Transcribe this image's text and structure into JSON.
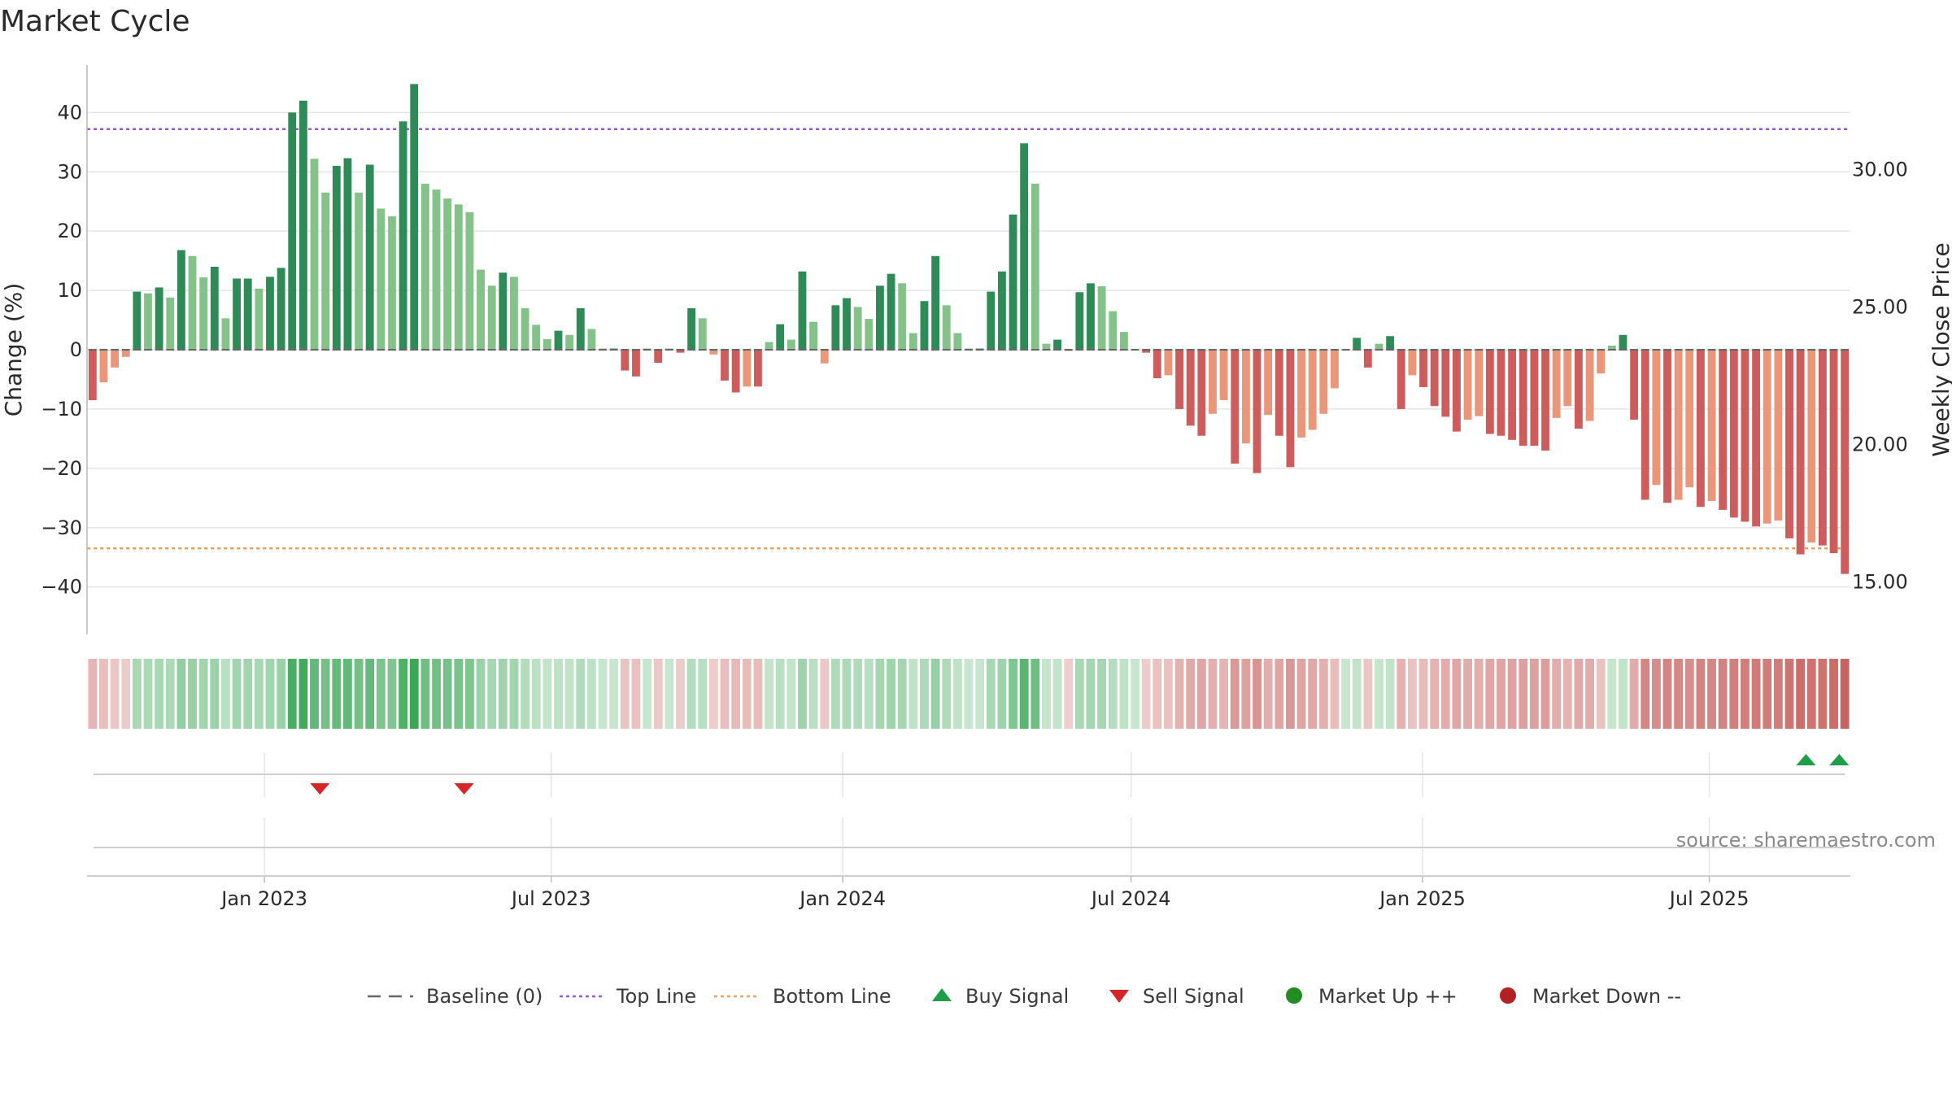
{
  "chart_data": {
    "type": "bar",
    "title": "Market Cycle",
    "ylabel_left": "Change (%)",
    "ylabel_right": "Weekly Close Price",
    "left_ylim": [
      -48,
      48
    ],
    "right_ylim": [
      13.1,
      33.8
    ],
    "left_ticks": [
      40,
      30,
      20,
      10,
      0,
      -10,
      -20,
      -30,
      -40
    ],
    "left_tick_labels": [
      "40",
      "30",
      "20",
      "10",
      "0",
      "−10",
      "−20",
      "−30",
      "−40"
    ],
    "right_ticks": [
      30,
      25,
      20,
      15
    ],
    "right_tick_labels": [
      "30.00",
      "25.00",
      "20.00",
      "15.00"
    ],
    "x_start": "2022-09-11",
    "x_end": "2025-09-28",
    "x_ticks": [
      {
        "date": "2023-01-01",
        "label": "Jan 2023"
      },
      {
        "date": "2023-07-01",
        "label": "Jul 2023"
      },
      {
        "date": "2024-01-01",
        "label": "Jan 2024"
      },
      {
        "date": "2024-07-01",
        "label": "Jul 2024"
      },
      {
        "date": "2025-01-01",
        "label": "Jan 2025"
      },
      {
        "date": "2025-07-01",
        "label": "Jul 2025"
      }
    ],
    "first_bar_week": "2022-09-11",
    "values": [
      -8.5,
      -5.5,
      -3,
      -1.2,
      9.8,
      9.5,
      10.5,
      8.8,
      16.8,
      15.8,
      12.2,
      14,
      5.3,
      12,
      12,
      10.3,
      12.3,
      13.8,
      40,
      42,
      32.2,
      26.5,
      31,
      32.3,
      26.5,
      31.2,
      23.8,
      22.5,
      38.5,
      44.8,
      28,
      27,
      25.5,
      24.5,
      23.2,
      13.5,
      10.8,
      13,
      12.3,
      7,
      4.2,
      1.8,
      3.2,
      2.5,
      7,
      3.5,
      0.2,
      0.2,
      -3.5,
      -4.5,
      0.2,
      -2.2,
      0.2,
      -0.5,
      7,
      5.3,
      -0.8,
      -5.2,
      -7.2,
      -6.2,
      -6.2,
      1.3,
      4.3,
      1.7,
      13.2,
      4.7,
      -2.3,
      7.5,
      8.7,
      7.2,
      5.2,
      10.8,
      12.8,
      11.2,
      2.8,
      8.2,
      15.8,
      7.5,
      2.8,
      0.2,
      0.2,
      9.8,
      13.2,
      22.8,
      34.8,
      28,
      1,
      1.7,
      -0.2,
      9.7,
      11.2,
      10.7,
      6.5,
      3,
      0.1,
      -0.5,
      -4.8,
      -4.3,
      -10,
      -12.8,
      -14.5,
      -10.8,
      -8.5,
      -19.2,
      -15.8,
      -20.8,
      -11,
      -14.5,
      -19.8,
      -14.8,
      -13.5,
      -10.8,
      -6.5,
      0.1,
      2,
      -3,
      1,
      2.3,
      -10,
      -4.3,
      -6.3,
      -9.5,
      -11.3,
      -13.8,
      -11.8,
      -11.2,
      -14.2,
      -14.5,
      -15.2,
      -16.2,
      -16.2,
      -17,
      -11.5,
      -9.5,
      -13.3,
      -12,
      -4,
      0.7,
      2.5,
      -11.8,
      -25.3,
      -22.8,
      -25.8,
      -25.3,
      -23.2,
      -26.5,
      -25.5,
      -27,
      -28.3,
      -29,
      -29.8,
      -29.3,
      -28.8,
      -31.8,
      -34.5,
      -32.5,
      -33,
      -34.3,
      -37.8
    ],
    "sell_signal_weeks": [
      "2023-02-05",
      "2023-05-07"
    ],
    "buy_signal_weeks": [
      "2025-08-31",
      "2025-09-21"
    ],
    "top_line_value": 37.2,
    "bottom_line_value": -33.5,
    "legend": [
      {
        "key": "baseline",
        "label": "Baseline (0)"
      },
      {
        "key": "top",
        "label": "Top Line"
      },
      {
        "key": "bottom",
        "label": "Bottom Line"
      },
      {
        "key": "buy",
        "label": "Buy Signal"
      },
      {
        "key": "sell",
        "label": "Sell Signal"
      },
      {
        "key": "up",
        "label": "Market Up ++"
      },
      {
        "key": "down",
        "label": "Market Down --"
      }
    ],
    "legend_position": "bottom",
    "grid": true
  },
  "source": "source: sharemaestro.com",
  "colors": {
    "up_strong": "#2e8b57",
    "up_weak": "#85c289",
    "down_strong": "#cd5c5c",
    "down_weak": "#e9967a",
    "top_line": "#9b59d0",
    "bottom_line": "#f0a060",
    "buy": "#1e9e48",
    "sell": "#d62728",
    "market_up": "#228b22",
    "market_down": "#b22222",
    "baseline": "#666666"
  }
}
